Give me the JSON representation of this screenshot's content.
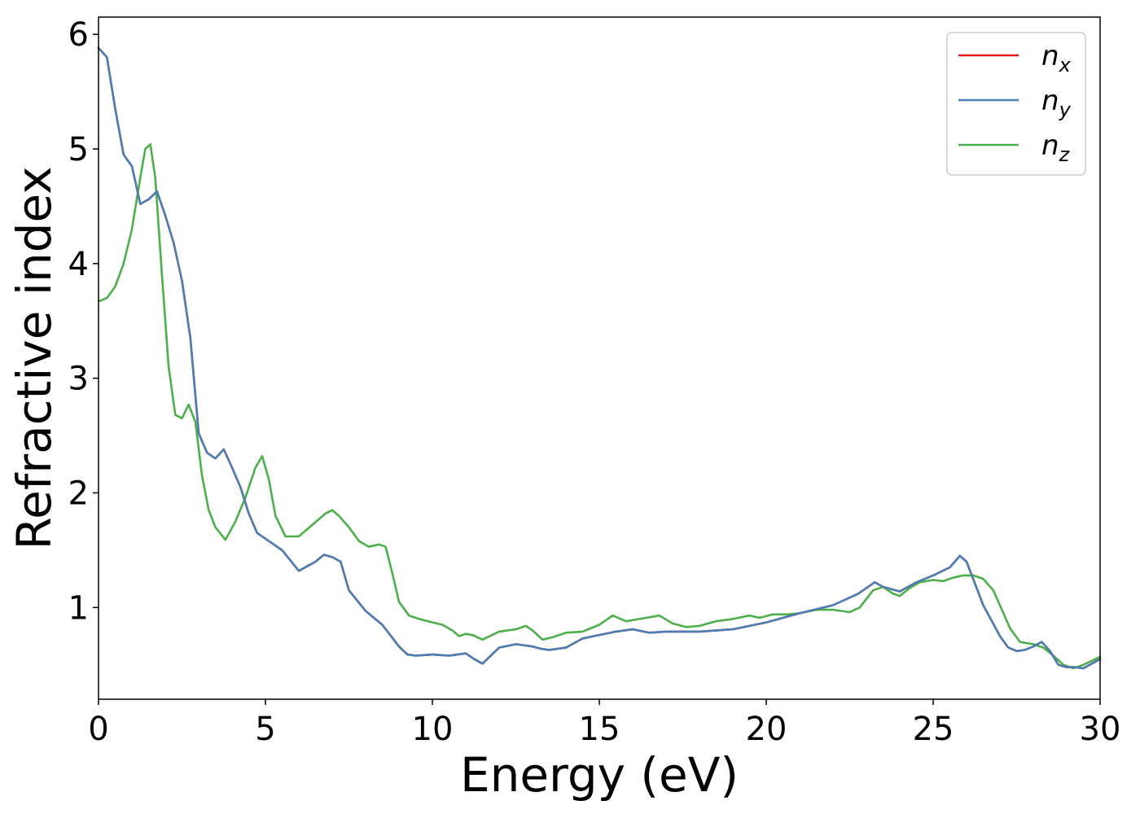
{
  "chart_data": {
    "type": "line",
    "xlabel": "Energy (eV)",
    "ylabel": "Refractive index",
    "xlim": [
      0,
      30
    ],
    "ylim": [
      0.2,
      6.15
    ],
    "xticks": [
      0,
      5,
      10,
      15,
      20,
      25,
      30
    ],
    "yticks": [
      1,
      2,
      3,
      4,
      5,
      6
    ],
    "grid": false,
    "legend_position": "top-right",
    "series": [
      {
        "name": "n",
        "subscript": "x",
        "color": "#e41a1c",
        "x": [
          0,
          0.25,
          0.5,
          0.75,
          1.0,
          1.25,
          1.5,
          1.75,
          2.0,
          2.25,
          2.5,
          2.75,
          3.0,
          3.25,
          3.5,
          3.75,
          4.0,
          4.25,
          4.5,
          4.75,
          5.0,
          5.5,
          6.0,
          6.5,
          6.75,
          7.0,
          7.25,
          7.5,
          8.0,
          8.5,
          9.0,
          9.25,
          9.5,
          10.0,
          10.5,
          11.0,
          11.25,
          11.5,
          12.0,
          12.5,
          13.0,
          13.25,
          13.5,
          14.0,
          14.5,
          15.0,
          15.5,
          16.0,
          16.5,
          17.0,
          18.0,
          19.0,
          20.0,
          21.0,
          22.0,
          22.75,
          23.25,
          23.5,
          24.0,
          24.5,
          25.0,
          25.5,
          25.8,
          26.0,
          26.5,
          27.0,
          27.25,
          27.5,
          27.75,
          28.0,
          28.25,
          28.5,
          28.75,
          29.0,
          29.25,
          29.5,
          30.0
        ],
        "y": [
          5.88,
          5.8,
          5.35,
          4.95,
          4.85,
          4.52,
          4.56,
          4.63,
          4.42,
          4.18,
          3.85,
          3.35,
          2.52,
          2.35,
          2.3,
          2.38,
          2.22,
          2.05,
          1.82,
          1.65,
          1.6,
          1.5,
          1.32,
          1.4,
          1.46,
          1.44,
          1.4,
          1.15,
          0.97,
          0.85,
          0.66,
          0.59,
          0.58,
          0.59,
          0.58,
          0.6,
          0.55,
          0.51,
          0.65,
          0.68,
          0.66,
          0.64,
          0.63,
          0.65,
          0.73,
          0.76,
          0.79,
          0.81,
          0.78,
          0.79,
          0.79,
          0.81,
          0.87,
          0.95,
          1.02,
          1.12,
          1.22,
          1.18,
          1.14,
          1.22,
          1.28,
          1.35,
          1.45,
          1.4,
          1.02,
          0.75,
          0.65,
          0.62,
          0.63,
          0.66,
          0.7,
          0.62,
          0.5,
          0.48,
          0.48,
          0.47,
          0.55
        ]
      },
      {
        "name": "n",
        "subscript": "y",
        "color": "#4a7fb5",
        "x": [
          0,
          0.25,
          0.5,
          0.75,
          1.0,
          1.25,
          1.5,
          1.75,
          2.0,
          2.25,
          2.5,
          2.75,
          3.0,
          3.25,
          3.5,
          3.75,
          4.0,
          4.25,
          4.5,
          4.75,
          5.0,
          5.5,
          6.0,
          6.5,
          6.75,
          7.0,
          7.25,
          7.5,
          8.0,
          8.5,
          9.0,
          9.25,
          9.5,
          10.0,
          10.5,
          11.0,
          11.25,
          11.5,
          12.0,
          12.5,
          13.0,
          13.25,
          13.5,
          14.0,
          14.5,
          15.0,
          15.5,
          16.0,
          16.5,
          17.0,
          18.0,
          19.0,
          20.0,
          21.0,
          22.0,
          22.75,
          23.25,
          23.5,
          24.0,
          24.5,
          25.0,
          25.5,
          25.8,
          26.0,
          26.5,
          27.0,
          27.25,
          27.5,
          27.75,
          28.0,
          28.25,
          28.5,
          28.75,
          29.0,
          29.25,
          29.5,
          30.0
        ],
        "y": [
          5.88,
          5.8,
          5.35,
          4.95,
          4.85,
          4.52,
          4.56,
          4.63,
          4.42,
          4.18,
          3.85,
          3.35,
          2.52,
          2.35,
          2.3,
          2.38,
          2.22,
          2.05,
          1.82,
          1.65,
          1.6,
          1.5,
          1.32,
          1.4,
          1.46,
          1.44,
          1.4,
          1.15,
          0.97,
          0.85,
          0.66,
          0.59,
          0.58,
          0.59,
          0.58,
          0.6,
          0.55,
          0.51,
          0.65,
          0.68,
          0.66,
          0.64,
          0.63,
          0.65,
          0.73,
          0.76,
          0.79,
          0.81,
          0.78,
          0.79,
          0.79,
          0.81,
          0.87,
          0.95,
          1.02,
          1.12,
          1.22,
          1.18,
          1.14,
          1.22,
          1.28,
          1.35,
          1.45,
          1.4,
          1.02,
          0.75,
          0.65,
          0.62,
          0.63,
          0.66,
          0.7,
          0.62,
          0.5,
          0.48,
          0.48,
          0.47,
          0.55
        ]
      },
      {
        "name": "n",
        "subscript": "z",
        "color": "#4daf4a",
        "x": [
          0,
          0.25,
          0.5,
          0.75,
          1.0,
          1.25,
          1.4,
          1.55,
          1.7,
          1.9,
          2.1,
          2.3,
          2.5,
          2.7,
          2.9,
          3.1,
          3.3,
          3.5,
          3.8,
          4.1,
          4.4,
          4.7,
          4.9,
          5.1,
          5.3,
          5.6,
          6.0,
          6.4,
          6.8,
          7.0,
          7.2,
          7.5,
          7.8,
          8.1,
          8.4,
          8.6,
          8.8,
          9.0,
          9.3,
          9.6,
          10.0,
          10.3,
          10.6,
          10.8,
          11.0,
          11.2,
          11.5,
          12.0,
          12.5,
          12.8,
          13.0,
          13.3,
          13.6,
          14.0,
          14.5,
          15.0,
          15.4,
          15.8,
          16.2,
          16.8,
          17.2,
          17.6,
          18.0,
          18.5,
          19.0,
          19.5,
          19.8,
          20.2,
          20.6,
          21.0,
          21.5,
          22.0,
          22.5,
          22.8,
          23.2,
          23.5,
          23.8,
          24.0,
          24.3,
          24.6,
          25.0,
          25.3,
          25.6,
          25.9,
          26.2,
          26.5,
          26.8,
          27.0,
          27.3,
          27.6,
          28.0,
          28.3,
          28.6,
          28.9,
          29.2,
          29.5,
          30.0
        ],
        "y": [
          3.67,
          3.7,
          3.8,
          4.0,
          4.3,
          4.75,
          5.0,
          5.04,
          4.75,
          3.9,
          3.1,
          2.68,
          2.65,
          2.77,
          2.62,
          2.15,
          1.85,
          1.7,
          1.59,
          1.75,
          1.96,
          2.22,
          2.32,
          2.12,
          1.8,
          1.62,
          1.62,
          1.72,
          1.82,
          1.85,
          1.8,
          1.7,
          1.58,
          1.53,
          1.55,
          1.53,
          1.3,
          1.05,
          0.93,
          0.9,
          0.87,
          0.85,
          0.8,
          0.75,
          0.77,
          0.76,
          0.72,
          0.79,
          0.81,
          0.84,
          0.8,
          0.72,
          0.74,
          0.78,
          0.79,
          0.85,
          0.93,
          0.88,
          0.9,
          0.93,
          0.86,
          0.83,
          0.84,
          0.88,
          0.9,
          0.93,
          0.91,
          0.94,
          0.94,
          0.95,
          0.98,
          0.98,
          0.96,
          1.0,
          1.15,
          1.18,
          1.12,
          1.1,
          1.17,
          1.22,
          1.24,
          1.23,
          1.26,
          1.28,
          1.28,
          1.25,
          1.15,
          1.02,
          0.82,
          0.7,
          0.68,
          0.65,
          0.58,
          0.5,
          0.47,
          0.5,
          0.57
        ]
      }
    ]
  }
}
